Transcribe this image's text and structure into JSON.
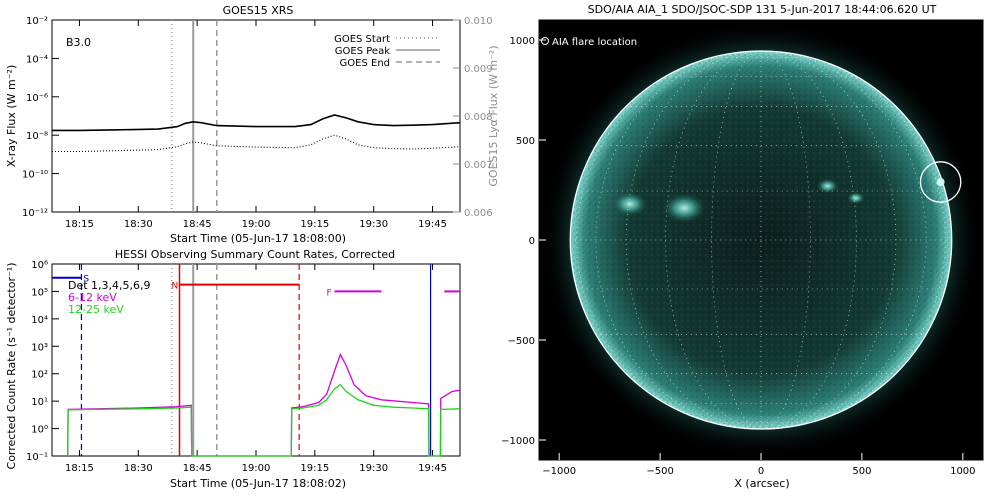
{
  "chart_data": [
    {
      "type": "line",
      "title": "GOES15 XRS",
      "xlabel": "Start Time (05-Jun-17 18:08:00)",
      "ylabel": "X-ray Flux (W m⁻²)",
      "ylabel_right": "GOES15 Lyα Flux (W m⁻²)",
      "x_ticks": [
        "18:15",
        "18:30",
        "18:45",
        "19:00",
        "19:15",
        "19:30",
        "19:45"
      ],
      "x_ticks_min": [
        15,
        30,
        45,
        60,
        75,
        90,
        105
      ],
      "xlim_min": [
        8,
        112
      ],
      "y_ticks": [
        "10⁻²",
        "10⁻⁴",
        "10⁻⁶",
        "10⁻⁸",
        "10⁻¹⁰",
        "10⁻¹²"
      ],
      "y_ticks_exp": [
        -2,
        -4,
        -6,
        -8,
        -10,
        -12
      ],
      "ylim_exp": [
        -12,
        -2
      ],
      "y2_ticks": [
        "0.010",
        "0.009",
        "0.008",
        "0.007",
        "0.006"
      ],
      "y2_ticks_val": [
        0.01,
        0.009,
        0.008,
        0.007,
        0.006
      ],
      "y2lim": [
        0.006,
        0.01
      ],
      "class_label": "B3.0",
      "legend": [
        {
          "label": "GOES Start",
          "style": "dotted"
        },
        {
          "label": "GOES Peak",
          "style": "solid"
        },
        {
          "label": "GOES End",
          "style": "dashed"
        }
      ],
      "event_lines_min": {
        "start": 38.5,
        "peak": 44,
        "end": 50
      },
      "series": [
        {
          "name": "X-ray",
          "color": "#000000",
          "style": "solid",
          "x": [
            8,
            15,
            25,
            35,
            40,
            42,
            44,
            46,
            50,
            60,
            70,
            74,
            77,
            80,
            83,
            86,
            90,
            95,
            100,
            105,
            112
          ],
          "log_y": [
            -7.75,
            -7.75,
            -7.72,
            -7.68,
            -7.55,
            -7.38,
            -7.3,
            -7.35,
            -7.5,
            -7.55,
            -7.55,
            -7.45,
            -7.15,
            -6.95,
            -7.1,
            -7.3,
            -7.45,
            -7.5,
            -7.48,
            -7.45,
            -7.35
          ]
        },
        {
          "name": "Lyα",
          "color": "#000000",
          "style": "dotted",
          "x": [
            8,
            15,
            25,
            35,
            40,
            42,
            44,
            46,
            50,
            60,
            70,
            74,
            77,
            80,
            83,
            86,
            90,
            95,
            100,
            105,
            112
          ],
          "log_y": [
            -8.85,
            -8.85,
            -8.8,
            -8.75,
            -8.6,
            -8.45,
            -8.35,
            -8.4,
            -8.55,
            -8.62,
            -8.65,
            -8.5,
            -8.2,
            -8.0,
            -8.2,
            -8.5,
            -8.65,
            -8.7,
            -8.72,
            -8.68,
            -8.6
          ]
        }
      ]
    },
    {
      "type": "line",
      "title": "HESSI Observing Summary Count Rates, Corrected",
      "xlabel": "Start Time (05-Jun-17 18:08:02)",
      "ylabel": "Corrected Count Rate (s⁻¹ detector⁻¹)",
      "x_ticks": [
        "18:15",
        "18:30",
        "18:45",
        "19:00",
        "19:15",
        "19:30",
        "19:45"
      ],
      "x_ticks_min": [
        15,
        30,
        45,
        60,
        75,
        90,
        105
      ],
      "xlim_min": [
        8,
        112
      ],
      "y_ticks": [
        "10⁶",
        "10⁵",
        "10⁴",
        "10³",
        "10²",
        "10¹",
        "10⁰",
        "10⁻¹"
      ],
      "y_ticks_exp": [
        6,
        5,
        4,
        3,
        2,
        1,
        0,
        -1
      ],
      "ylim_exp": [
        -1,
        6
      ],
      "legend_text": [
        "Det 1,3,4,5,6,9",
        "6-12 keV",
        "12-25 keV"
      ],
      "legend_colors": [
        "#000000",
        "#d400d4",
        "#1cd41c"
      ],
      "flags": [
        {
          "label": "S",
          "color": "#0000cc",
          "x0": 8,
          "x1": 15.5,
          "log_y": 5.5
        },
        {
          "label": "N",
          "color": "#e00000",
          "x0": 40.5,
          "x1": 71,
          "log_y": 5.25
        },
        {
          "label": "F",
          "color": "#d400d4",
          "x0": 80,
          "x1": 92,
          "log_y": 5.0
        },
        {
          "label": "",
          "color": "#d400d4",
          "x0": 108,
          "x1": 112,
          "log_y": 5.0
        }
      ],
      "event_lines_min": {
        "start": 38.5,
        "peak": 44,
        "end": 50
      },
      "night_lines_min": {
        "start": 40.5,
        "end": 71,
        "color": "#e00000"
      },
      "saa_lines_min": [
        15.5,
        104.5
      ],
      "series": [
        {
          "name": "6-12 keV",
          "color": "#d400d4",
          "x": [
            12,
            12.1,
            20,
            30,
            40,
            43.5,
            43.6,
            69,
            69.1,
            72,
            76,
            78,
            80,
            81.5,
            83,
            85,
            88,
            92,
            100,
            104,
            104.1,
            107,
            107.1,
            110,
            112
          ],
          "log_y": [
            -1,
            0.7,
            0.72,
            0.75,
            0.8,
            0.85,
            -1,
            -1,
            0.75,
            0.8,
            0.95,
            1.25,
            2.1,
            2.7,
            2.3,
            1.6,
            1.2,
            1.05,
            0.95,
            0.9,
            -1,
            -1,
            1.1,
            1.35,
            1.4
          ]
        },
        {
          "name": "12-25 keV",
          "color": "#1cd41c",
          "x": [
            12,
            12.1,
            20,
            30,
            40,
            43.5,
            43.6,
            69,
            69.1,
            72,
            76,
            78,
            80,
            81.5,
            83,
            86,
            90,
            95,
            100,
            104,
            104.1,
            107,
            107.1,
            112
          ],
          "log_y": [
            -1,
            0.68,
            0.7,
            0.72,
            0.75,
            0.78,
            -1,
            -1,
            0.72,
            0.75,
            0.85,
            1.05,
            1.45,
            1.6,
            1.35,
            1.05,
            0.85,
            0.78,
            0.75,
            0.72,
            -1,
            -1,
            0.7,
            0.72
          ]
        }
      ]
    },
    {
      "type": "heatmap",
      "title": "SDO/AIA AIA_1 SDO/JSOC-SDP 131  5-Jun-2017 18:44:06.620 UT",
      "xlabel": "X (arcsec)",
      "ylabel": "",
      "annotation": "AIA flare location",
      "x_ticks": [
        "−1000",
        "−500",
        "0",
        "500",
        "1000"
      ],
      "x_ticks_val": [
        -1000,
        -500,
        0,
        500,
        1000
      ],
      "y_ticks": [
        "1000",
        "500",
        "0",
        "−500",
        "−1000"
      ],
      "y_ticks_val": [
        1000,
        500,
        0,
        -500,
        -1000
      ],
      "xlim": [
        -1100,
        1100
      ],
      "ylim": [
        -1100,
        1100
      ],
      "solar_radius_arcsec": 945,
      "flare_location": [
        890,
        290
      ],
      "flare_circle_radius": 100,
      "active_regions": [
        {
          "x": -650,
          "y": 180,
          "r": 90
        },
        {
          "x": -380,
          "y": 160,
          "r": 110
        },
        {
          "x": 330,
          "y": 270,
          "r": 55
        },
        {
          "x": 470,
          "y": 210,
          "r": 45
        }
      ]
    }
  ]
}
